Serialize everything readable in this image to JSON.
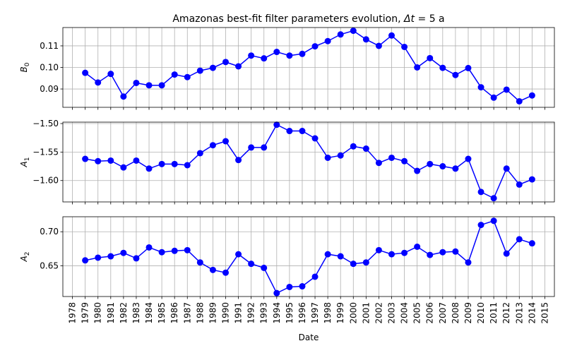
{
  "chart_data": {
    "type": "line",
    "title": "Amazonas best-fit filter parameters evolution, Δt = 5 a",
    "title_parts": {
      "prefix": "Amazonas best-fit filter parameters evolution, ",
      "delta_t": "Δt",
      "suffix": " = 5 a"
    },
    "xlabel": "Date",
    "x_ticks": [
      "1978",
      "1979",
      "1980",
      "1981",
      "1982",
      "1983",
      "1984",
      "1985",
      "1986",
      "1987",
      "1988",
      "1989",
      "1990",
      "1991",
      "1992",
      "1993",
      "1994",
      "1995",
      "1996",
      "1997",
      "1998",
      "1999",
      "2000",
      "2001",
      "2002",
      "2003",
      "2004",
      "2005",
      "2006",
      "2007",
      "2008",
      "2009",
      "2010",
      "2011",
      "2012",
      "2013",
      "2014",
      "2015"
    ],
    "x": [
      1979,
      1980,
      1981,
      1982,
      1983,
      1984,
      1985,
      1986,
      1987,
      1988,
      1989,
      1990,
      1991,
      1992,
      1993,
      1994,
      1995,
      1996,
      1997,
      1998,
      1999,
      2000,
      2001,
      2002,
      2003,
      2004,
      2005,
      2006,
      2007,
      2008,
      2009,
      2010,
      2011,
      2012,
      2013,
      2014
    ],
    "xlim": [
      1977.25,
      2015.75
    ],
    "grid": true,
    "color": "#0000ff",
    "panels": [
      {
        "ylabel": "B",
        "ylabel_sub": "0",
        "ylim": [
          0.0815,
          0.1185
        ],
        "yticks": [
          0.09,
          0.1,
          0.11
        ],
        "ytick_labels": [
          "0.09",
          "0.10",
          "0.11"
        ],
        "values": [
          0.0975,
          0.093,
          0.097,
          0.0865,
          0.0928,
          0.0917,
          0.0917,
          0.0967,
          0.0955,
          0.0985,
          0.0998,
          0.1025,
          0.1005,
          0.1055,
          0.1042,
          0.1072,
          0.1055,
          0.1063,
          0.1098,
          0.1122,
          0.1153,
          0.117,
          0.113,
          0.11,
          0.1148,
          0.1095,
          0.1,
          0.1043,
          0.0998,
          0.0965,
          0.0997,
          0.0908,
          0.086,
          0.0897,
          0.0843,
          0.087
        ]
      },
      {
        "ylabel": "A",
        "ylabel_sub": "1",
        "ylim": [
          -1.6375,
          -1.4975
        ],
        "yticks": [
          -1.5,
          -1.55,
          -1.6
        ],
        "ytick_labels": [
          "−1.50",
          "−1.55",
          "−1.60"
        ],
        "values": [
          -1.562,
          -1.566,
          -1.565,
          -1.577,
          -1.565,
          -1.579,
          -1.571,
          -1.571,
          -1.573,
          -1.552,
          -1.538,
          -1.531,
          -1.564,
          -1.542,
          -1.542,
          -1.502,
          -1.513,
          -1.513,
          -1.526,
          -1.56,
          -1.556,
          -1.54,
          -1.544,
          -1.569,
          -1.56,
          -1.566,
          -1.583,
          -1.571,
          -1.575,
          -1.579,
          -1.562,
          -1.62,
          -1.631,
          -1.579,
          -1.607,
          -1.598
        ]
      },
      {
        "ylabel": "A",
        "ylabel_sub": "2",
        "ylim": [
          0.605,
          0.722
        ],
        "yticks": [
          0.65,
          0.7
        ],
        "ytick_labels": [
          "0.65",
          "0.70"
        ],
        "values": [
          0.658,
          0.662,
          0.664,
          0.669,
          0.661,
          0.677,
          0.67,
          0.672,
          0.673,
          0.655,
          0.644,
          0.64,
          0.667,
          0.653,
          0.647,
          0.61,
          0.619,
          0.62,
          0.634,
          0.667,
          0.664,
          0.653,
          0.655,
          0.673,
          0.667,
          0.669,
          0.678,
          0.666,
          0.67,
          0.671,
          0.655,
          0.71,
          0.716,
          0.668,
          0.689,
          0.683
        ]
      }
    ]
  }
}
